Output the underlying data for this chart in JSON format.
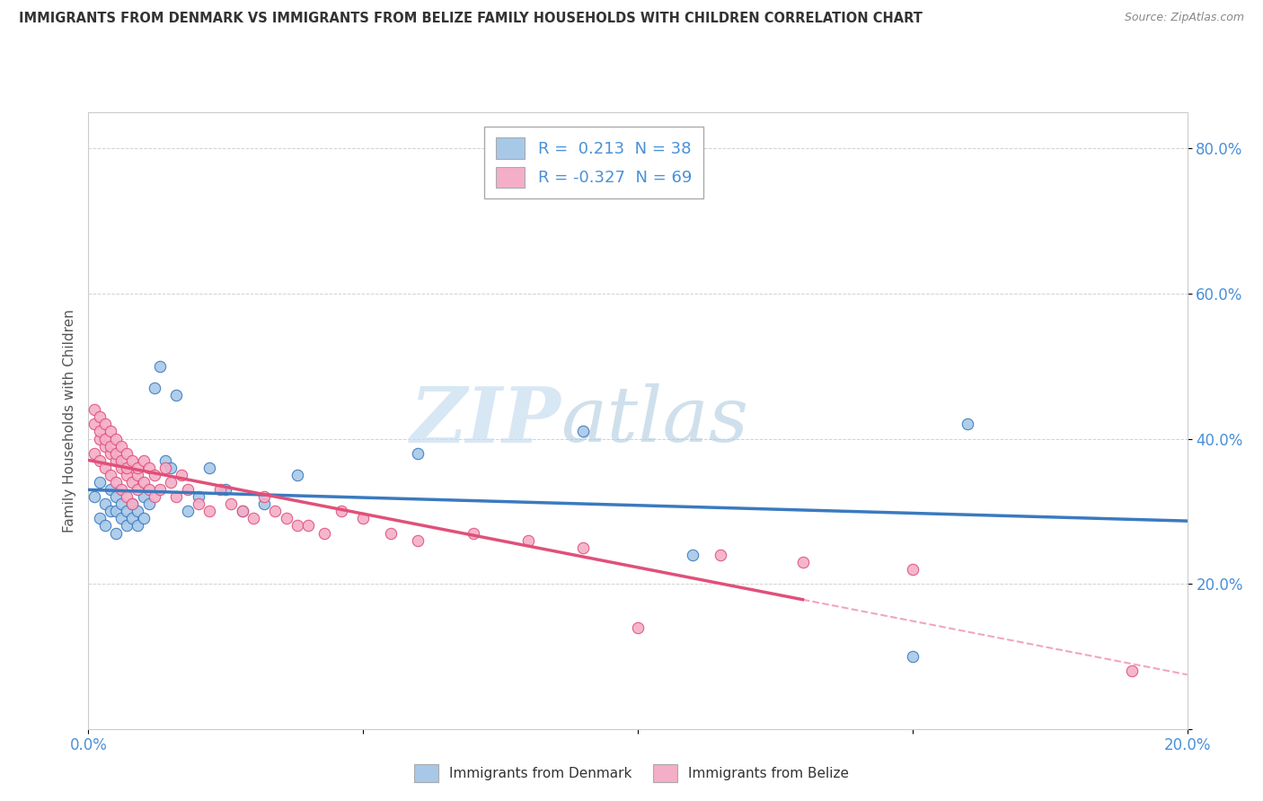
{
  "title": "IMMIGRANTS FROM DENMARK VS IMMIGRANTS FROM BELIZE FAMILY HOUSEHOLDS WITH CHILDREN CORRELATION CHART",
  "source": "Source: ZipAtlas.com",
  "ylabel": "Family Households with Children",
  "xlim": [
    0.0,
    0.2
  ],
  "ylim": [
    0.0,
    0.85
  ],
  "denmark_color": "#a8c8e8",
  "belize_color": "#f4aec8",
  "denmark_line_color": "#3a7abf",
  "belize_line_color": "#e0507a",
  "denmark_R": 0.213,
  "denmark_N": 38,
  "belize_R": -0.327,
  "belize_N": 69,
  "watermark_zip": "ZIP",
  "watermark_atlas": "atlas",
  "denmark_scatter_x": [
    0.001,
    0.002,
    0.002,
    0.003,
    0.003,
    0.004,
    0.004,
    0.005,
    0.005,
    0.005,
    0.006,
    0.006,
    0.007,
    0.007,
    0.008,
    0.008,
    0.009,
    0.009,
    0.01,
    0.01,
    0.011,
    0.012,
    0.013,
    0.014,
    0.015,
    0.016,
    0.018,
    0.02,
    0.022,
    0.025,
    0.028,
    0.032,
    0.038,
    0.06,
    0.09,
    0.11,
    0.15,
    0.16
  ],
  "denmark_scatter_y": [
    0.32,
    0.29,
    0.34,
    0.28,
    0.31,
    0.3,
    0.33,
    0.27,
    0.3,
    0.32,
    0.29,
    0.31,
    0.28,
    0.3,
    0.29,
    0.31,
    0.28,
    0.3,
    0.29,
    0.32,
    0.31,
    0.47,
    0.5,
    0.37,
    0.36,
    0.46,
    0.3,
    0.32,
    0.36,
    0.33,
    0.3,
    0.31,
    0.35,
    0.38,
    0.41,
    0.24,
    0.1,
    0.42
  ],
  "belize_scatter_x": [
    0.001,
    0.001,
    0.001,
    0.002,
    0.002,
    0.002,
    0.002,
    0.003,
    0.003,
    0.003,
    0.003,
    0.004,
    0.004,
    0.004,
    0.004,
    0.005,
    0.005,
    0.005,
    0.005,
    0.006,
    0.006,
    0.006,
    0.006,
    0.007,
    0.007,
    0.007,
    0.007,
    0.008,
    0.008,
    0.008,
    0.009,
    0.009,
    0.009,
    0.01,
    0.01,
    0.011,
    0.011,
    0.012,
    0.012,
    0.013,
    0.014,
    0.015,
    0.016,
    0.017,
    0.018,
    0.02,
    0.022,
    0.024,
    0.026,
    0.028,
    0.03,
    0.032,
    0.034,
    0.036,
    0.038,
    0.04,
    0.043,
    0.046,
    0.05,
    0.055,
    0.06,
    0.07,
    0.08,
    0.09,
    0.1,
    0.115,
    0.13,
    0.15,
    0.19
  ],
  "belize_scatter_y": [
    0.42,
    0.44,
    0.38,
    0.4,
    0.43,
    0.37,
    0.41,
    0.39,
    0.42,
    0.36,
    0.4,
    0.38,
    0.41,
    0.35,
    0.39,
    0.37,
    0.4,
    0.34,
    0.38,
    0.36,
    0.39,
    0.33,
    0.37,
    0.35,
    0.38,
    0.32,
    0.36,
    0.34,
    0.37,
    0.31,
    0.35,
    0.33,
    0.36,
    0.34,
    0.37,
    0.33,
    0.36,
    0.32,
    0.35,
    0.33,
    0.36,
    0.34,
    0.32,
    0.35,
    0.33,
    0.31,
    0.3,
    0.33,
    0.31,
    0.3,
    0.29,
    0.32,
    0.3,
    0.29,
    0.28,
    0.28,
    0.27,
    0.3,
    0.29,
    0.27,
    0.26,
    0.27,
    0.26,
    0.25,
    0.14,
    0.24,
    0.23,
    0.22,
    0.08
  ]
}
